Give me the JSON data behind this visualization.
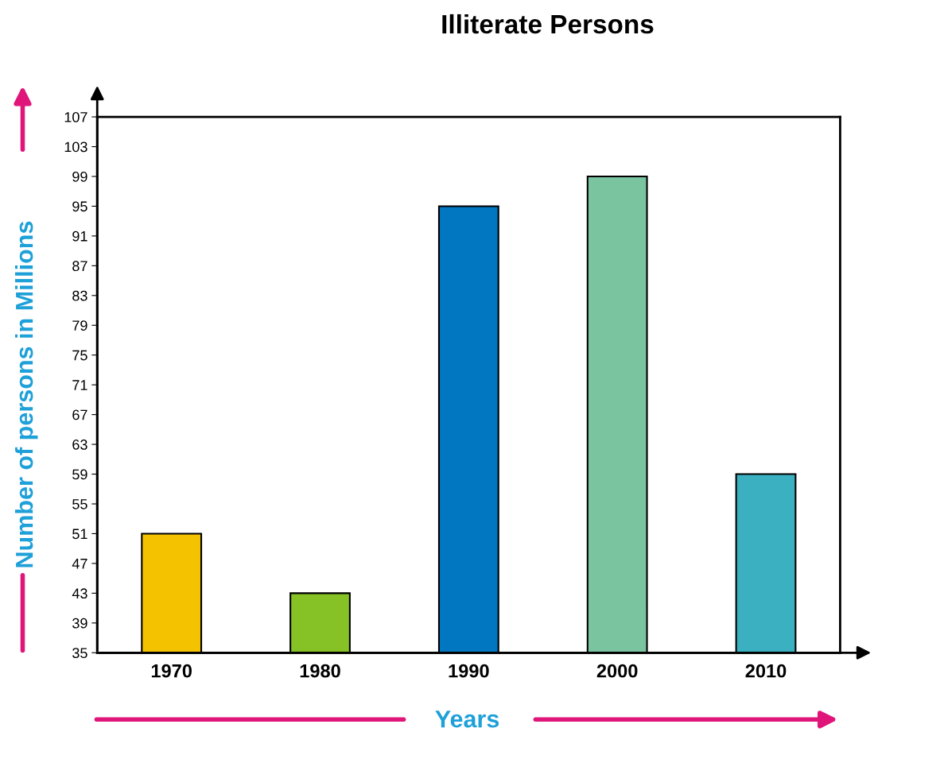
{
  "chart_data": {
    "type": "bar",
    "title": "Illiterate Persons",
    "xlabel": "Years",
    "ylabel": "Number of persons in Millions",
    "categories": [
      "1970",
      "1980",
      "1990",
      "2000",
      "2010"
    ],
    "values": [
      51,
      43,
      95,
      99,
      59
    ],
    "colors": [
      "#f5c200",
      "#86c226",
      "#0077c0",
      "#7ac5a0",
      "#3ab0c0"
    ],
    "ylim": [
      35,
      107
    ],
    "yticks": [
      35,
      39,
      43,
      47,
      51,
      55,
      59,
      63,
      67,
      71,
      75,
      79,
      83,
      87,
      91,
      95,
      99,
      103,
      107
    ],
    "grid": false,
    "legend": false
  }
}
